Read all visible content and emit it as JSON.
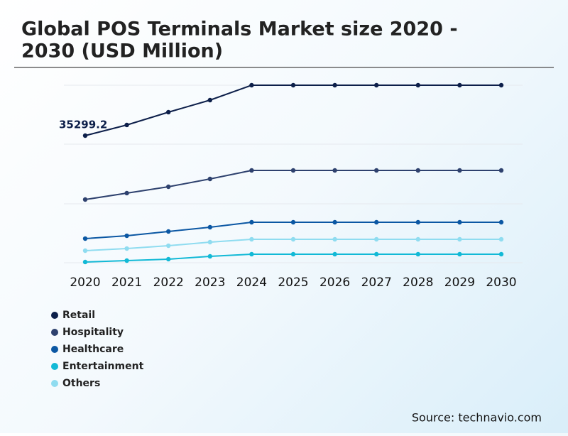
{
  "chart_data": {
    "type": "line",
    "title_lines": [
      "Global POS Terminals Market size 2020 -",
      "2030 (USD Million)"
    ],
    "source": "Source: technavio.com",
    "categories": [
      "2020",
      "2021",
      "2022",
      "2023",
      "2024",
      "2025",
      "2026",
      "2027",
      "2028",
      "2029",
      "2030"
    ],
    "ylim": [
      0,
      49300
    ],
    "series": [
      {
        "name": "Retail",
        "color": "#0d1f4a",
        "values": [
          35299.2,
          38260,
          41810,
          45160,
          49300,
          49300,
          49300,
          49300,
          49300,
          49300,
          49300
        ]
      },
      {
        "name": "Hospitality",
        "color": "#2e416e",
        "values": [
          17550,
          19330,
          21100,
          23270,
          25640,
          25640,
          25640,
          25640,
          25640,
          25640,
          25640
        ]
      },
      {
        "name": "Healthcare",
        "color": "#0b57a3",
        "values": [
          6700,
          7490,
          8680,
          9860,
          11240,
          11240,
          11240,
          11240,
          11240,
          11240,
          11240
        ]
      },
      {
        "name": "Entertainment",
        "color": "#12b9d6",
        "values": [
          200,
          590,
          990,
          1780,
          2370,
          2370,
          2370,
          2370,
          2370,
          2370,
          2370
        ]
      },
      {
        "name": "Others",
        "color": "#8fdcf0",
        "values": [
          3350,
          3940,
          4730,
          5720,
          6510,
          6510,
          6510,
          6510,
          6510,
          6510,
          6510
        ]
      }
    ],
    "labeled_point": {
      "series": 0,
      "index": 0
    }
  }
}
